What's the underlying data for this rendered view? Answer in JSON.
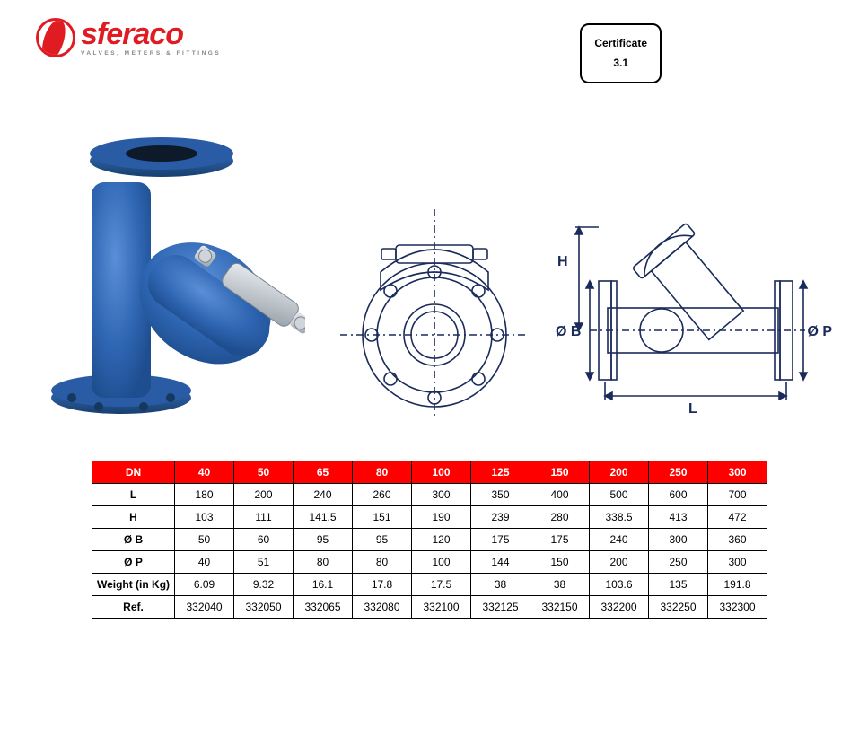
{
  "logo": {
    "brand": "sferaco",
    "tagline": "VALVES, METERS & FITTINGS",
    "brand_color": "#e11b22"
  },
  "certificate": {
    "line1": "Certificate",
    "line2": "3.1"
  },
  "diagram_labels": {
    "H": "H",
    "OB": "Ø B",
    "OP": "Ø P",
    "L": "L"
  },
  "colors": {
    "table_header_bg": "#ff0000",
    "table_header_fg": "#ffffff",
    "border": "#000000",
    "diagram_stroke": "#1a2a5a",
    "valve_blue": "#2f66b3",
    "valve_blue_dark": "#1e4e8f",
    "valve_steel": "#b9c0c6"
  },
  "table": {
    "header_label": "DN",
    "columns": [
      "40",
      "50",
      "65",
      "80",
      "100",
      "125",
      "150",
      "200",
      "250",
      "300"
    ],
    "rows": [
      {
        "label": "L",
        "values": [
          "180",
          "200",
          "240",
          "260",
          "300",
          "350",
          "400",
          "500",
          "600",
          "700"
        ]
      },
      {
        "label": "H",
        "values": [
          "103",
          "111",
          "141.5",
          "151",
          "190",
          "239",
          "280",
          "338.5",
          "413",
          "472"
        ]
      },
      {
        "label": "Ø B",
        "values": [
          "50",
          "60",
          "95",
          "95",
          "120",
          "175",
          "175",
          "240",
          "300",
          "360"
        ]
      },
      {
        "label": "Ø P",
        "values": [
          "40",
          "51",
          "80",
          "80",
          "100",
          "144",
          "150",
          "200",
          "250",
          "300"
        ]
      },
      {
        "label": "Weight (in Kg)",
        "values": [
          "6.09",
          "9.32",
          "16.1",
          "17.8",
          "17.5",
          "38",
          "38",
          "103.6",
          "135",
          "191.8"
        ]
      },
      {
        "label": "Ref.",
        "values": [
          "332040",
          "332050",
          "332065",
          "332080",
          "332100",
          "332125",
          "332150",
          "332200",
          "332250",
          "332300"
        ]
      }
    ],
    "col_width_head": 92,
    "col_width_data": 66,
    "font_size": 12
  }
}
